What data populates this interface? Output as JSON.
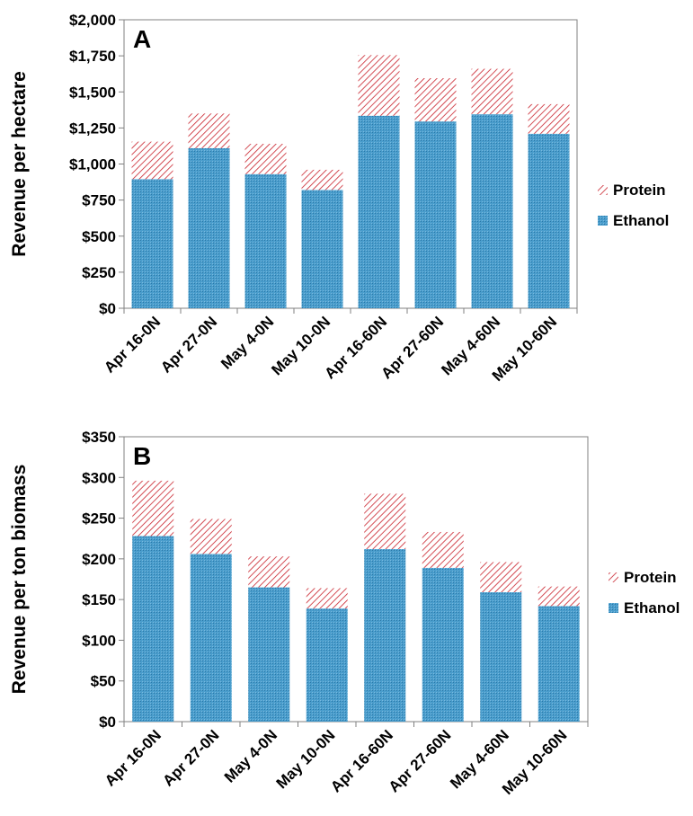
{
  "chart_data": [
    {
      "type": "bar",
      "stacked": true,
      "panel_label": "A",
      "ylabel": "Revenue per hectare",
      "categories": [
        "Apr 16-0N",
        "Apr 27-0N",
        "May 4-0N",
        "May 10-0N",
        "Apr 16-60N",
        "Apr 27-60N",
        "May 4-60N",
        "May 10-60N"
      ],
      "series": [
        {
          "name": "Ethanol",
          "values": [
            895,
            1110,
            930,
            820,
            1335,
            1295,
            1345,
            1210
          ]
        },
        {
          "name": "Protein",
          "values": [
            260,
            240,
            210,
            140,
            420,
            300,
            315,
            205
          ]
        }
      ],
      "ylim": [
        0,
        2000
      ],
      "yticks": [
        0,
        250,
        500,
        750,
        1000,
        1250,
        1500,
        1750,
        2000
      ],
      "ytick_labels": [
        "$0",
        "$250",
        "$500",
        "$750",
        "$1,000",
        "$1,250",
        "$1,500",
        "$1,750",
        "$2,000"
      ],
      "legend_order": [
        "Protein",
        "Ethanol"
      ],
      "legend_position": "right",
      "colors": {
        "Ethanol": "#3d94c4",
        "Protein": "#c9202a"
      },
      "grid": false
    },
    {
      "type": "bar",
      "stacked": true,
      "panel_label": "B",
      "ylabel": "Revenue per ton biomass",
      "categories": [
        "Apr 16-0N",
        "Apr 27-0N",
        "May 4-0N",
        "May 10-0N",
        "Apr 16-60N",
        "Apr 27-60N",
        "May 4-60N",
        "May 10-60N"
      ],
      "series": [
        {
          "name": "Ethanol",
          "values": [
            228,
            206,
            165,
            139,
            212,
            189,
            159,
            142
          ]
        },
        {
          "name": "Protein",
          "values": [
            68,
            43,
            38,
            25,
            68,
            44,
            37,
            24
          ]
        }
      ],
      "ylim": [
        0,
        350
      ],
      "yticks": [
        0,
        50,
        100,
        150,
        200,
        250,
        300,
        350
      ],
      "ytick_labels": [
        "$0",
        "$50",
        "$100",
        "$150",
        "$200",
        "$250",
        "$300",
        "$350"
      ],
      "legend_order": [
        "Protein",
        "Ethanol"
      ],
      "legend_position": "right",
      "colors": {
        "Ethanol": "#3d94c4",
        "Protein": "#c9202a"
      },
      "grid": false
    }
  ]
}
